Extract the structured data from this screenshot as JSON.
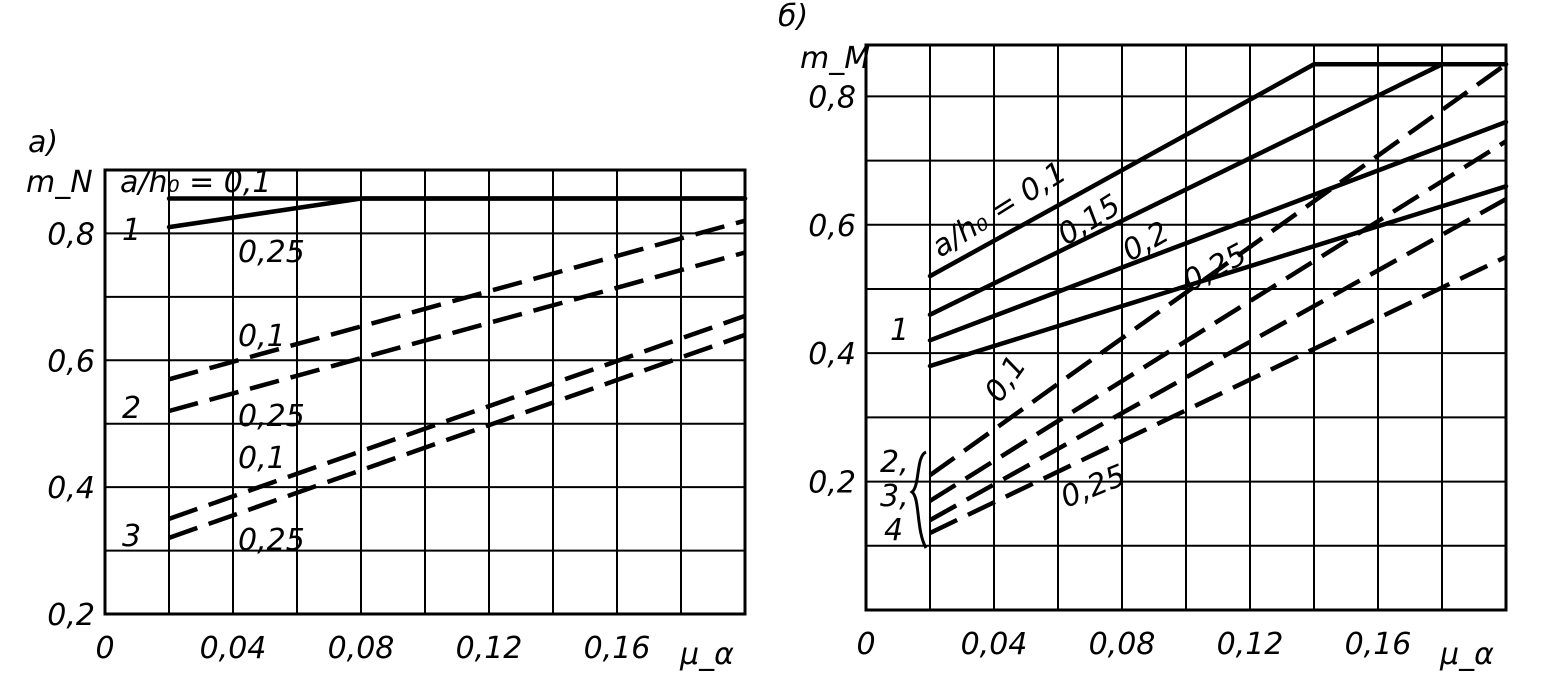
{
  "chart_data": [
    {
      "type": "line",
      "panel_label": "а)",
      "ylabel": "m_N",
      "xlabel": "μ_α",
      "xlim": [
        0,
        0.2
      ],
      "ylim": [
        0.2,
        0.9
      ],
      "x_ticks": [
        "0",
        "0,04",
        "0,08",
        "0,12",
        "0,16"
      ],
      "y_ticks": [
        "0,2",
        "0,4",
        "0,6",
        "0,8"
      ],
      "grid": true,
      "series": [
        {
          "group": "1",
          "label": "a/h₀ = 0,1",
          "style": "solid",
          "x": [
            0.02,
            0.2
          ],
          "y": [
            0.855,
            0.855
          ]
        },
        {
          "group": "1",
          "label": "0,25",
          "style": "solid",
          "x": [
            0.02,
            0.08,
            0.2
          ],
          "y": [
            0.81,
            0.855,
            0.855
          ]
        },
        {
          "group": "2",
          "label": "0,1",
          "style": "dashed",
          "x": [
            0.02,
            0.2
          ],
          "y": [
            0.57,
            0.82
          ]
        },
        {
          "group": "2",
          "label": "0,25",
          "style": "dashed",
          "x": [
            0.02,
            0.2
          ],
          "y": [
            0.52,
            0.77
          ]
        },
        {
          "group": "3",
          "label": "0,1",
          "style": "dashed",
          "x": [
            0.02,
            0.2
          ],
          "y": [
            0.35,
            0.67
          ]
        },
        {
          "group": "3",
          "label": "0,25",
          "style": "dashed",
          "x": [
            0.02,
            0.2
          ],
          "y": [
            0.32,
            0.64
          ]
        }
      ],
      "annotations": [
        "a/h₀ = 0,1",
        "0,25",
        "0,1",
        "0,25",
        "0,1",
        "0,25",
        "1",
        "2",
        "3"
      ]
    },
    {
      "type": "line",
      "panel_label": "б)",
      "ylabel": "m_M",
      "xlabel": "μ_α",
      "xlim": [
        0,
        0.2
      ],
      "ylim": [
        0,
        0.88
      ],
      "x_ticks": [
        "0",
        "0,04",
        "0,08",
        "0,12",
        "0,16"
      ],
      "y_ticks": [
        "0,2",
        "0,4",
        "0,6",
        "0,8"
      ],
      "grid": true,
      "series": [
        {
          "group": "1",
          "label": "a/h₀ = 0,1",
          "style": "solid",
          "x": [
            0.02,
            0.14,
            0.2
          ],
          "y": [
            0.52,
            0.85,
            0.85
          ]
        },
        {
          "group": "1",
          "label": "0,15",
          "style": "solid",
          "x": [
            0.02,
            0.18,
            0.2
          ],
          "y": [
            0.46,
            0.85,
            0.85
          ]
        },
        {
          "group": "1",
          "label": "0,2",
          "style": "solid",
          "x": [
            0.02,
            0.2
          ],
          "y": [
            0.42,
            0.76
          ]
        },
        {
          "group": "1",
          "label": "0,25",
          "style": "solid",
          "x": [
            0.02,
            0.2
          ],
          "y": [
            0.38,
            0.66
          ]
        },
        {
          "group": "2",
          "label": "0,1",
          "style": "dashed",
          "x": [
            0.02,
            0.2
          ],
          "y": [
            0.21,
            0.85
          ]
        },
        {
          "group": "3",
          "label": "",
          "style": "dashed",
          "x": [
            0.02,
            0.2
          ],
          "y": [
            0.17,
            0.73
          ]
        },
        {
          "group": "3",
          "label": "",
          "style": "dashed",
          "x": [
            0.02,
            0.2
          ],
          "y": [
            0.14,
            0.64
          ]
        },
        {
          "group": "4",
          "label": "0,25",
          "style": "dashed",
          "x": [
            0.02,
            0.2
          ],
          "y": [
            0.12,
            0.55
          ]
        }
      ],
      "annotations": [
        "a/h₀ = 0,1",
        "0,15",
        "0,2",
        "0,25",
        "0,1",
        "0,25",
        "1",
        "2,",
        "3,",
        "4"
      ]
    }
  ]
}
